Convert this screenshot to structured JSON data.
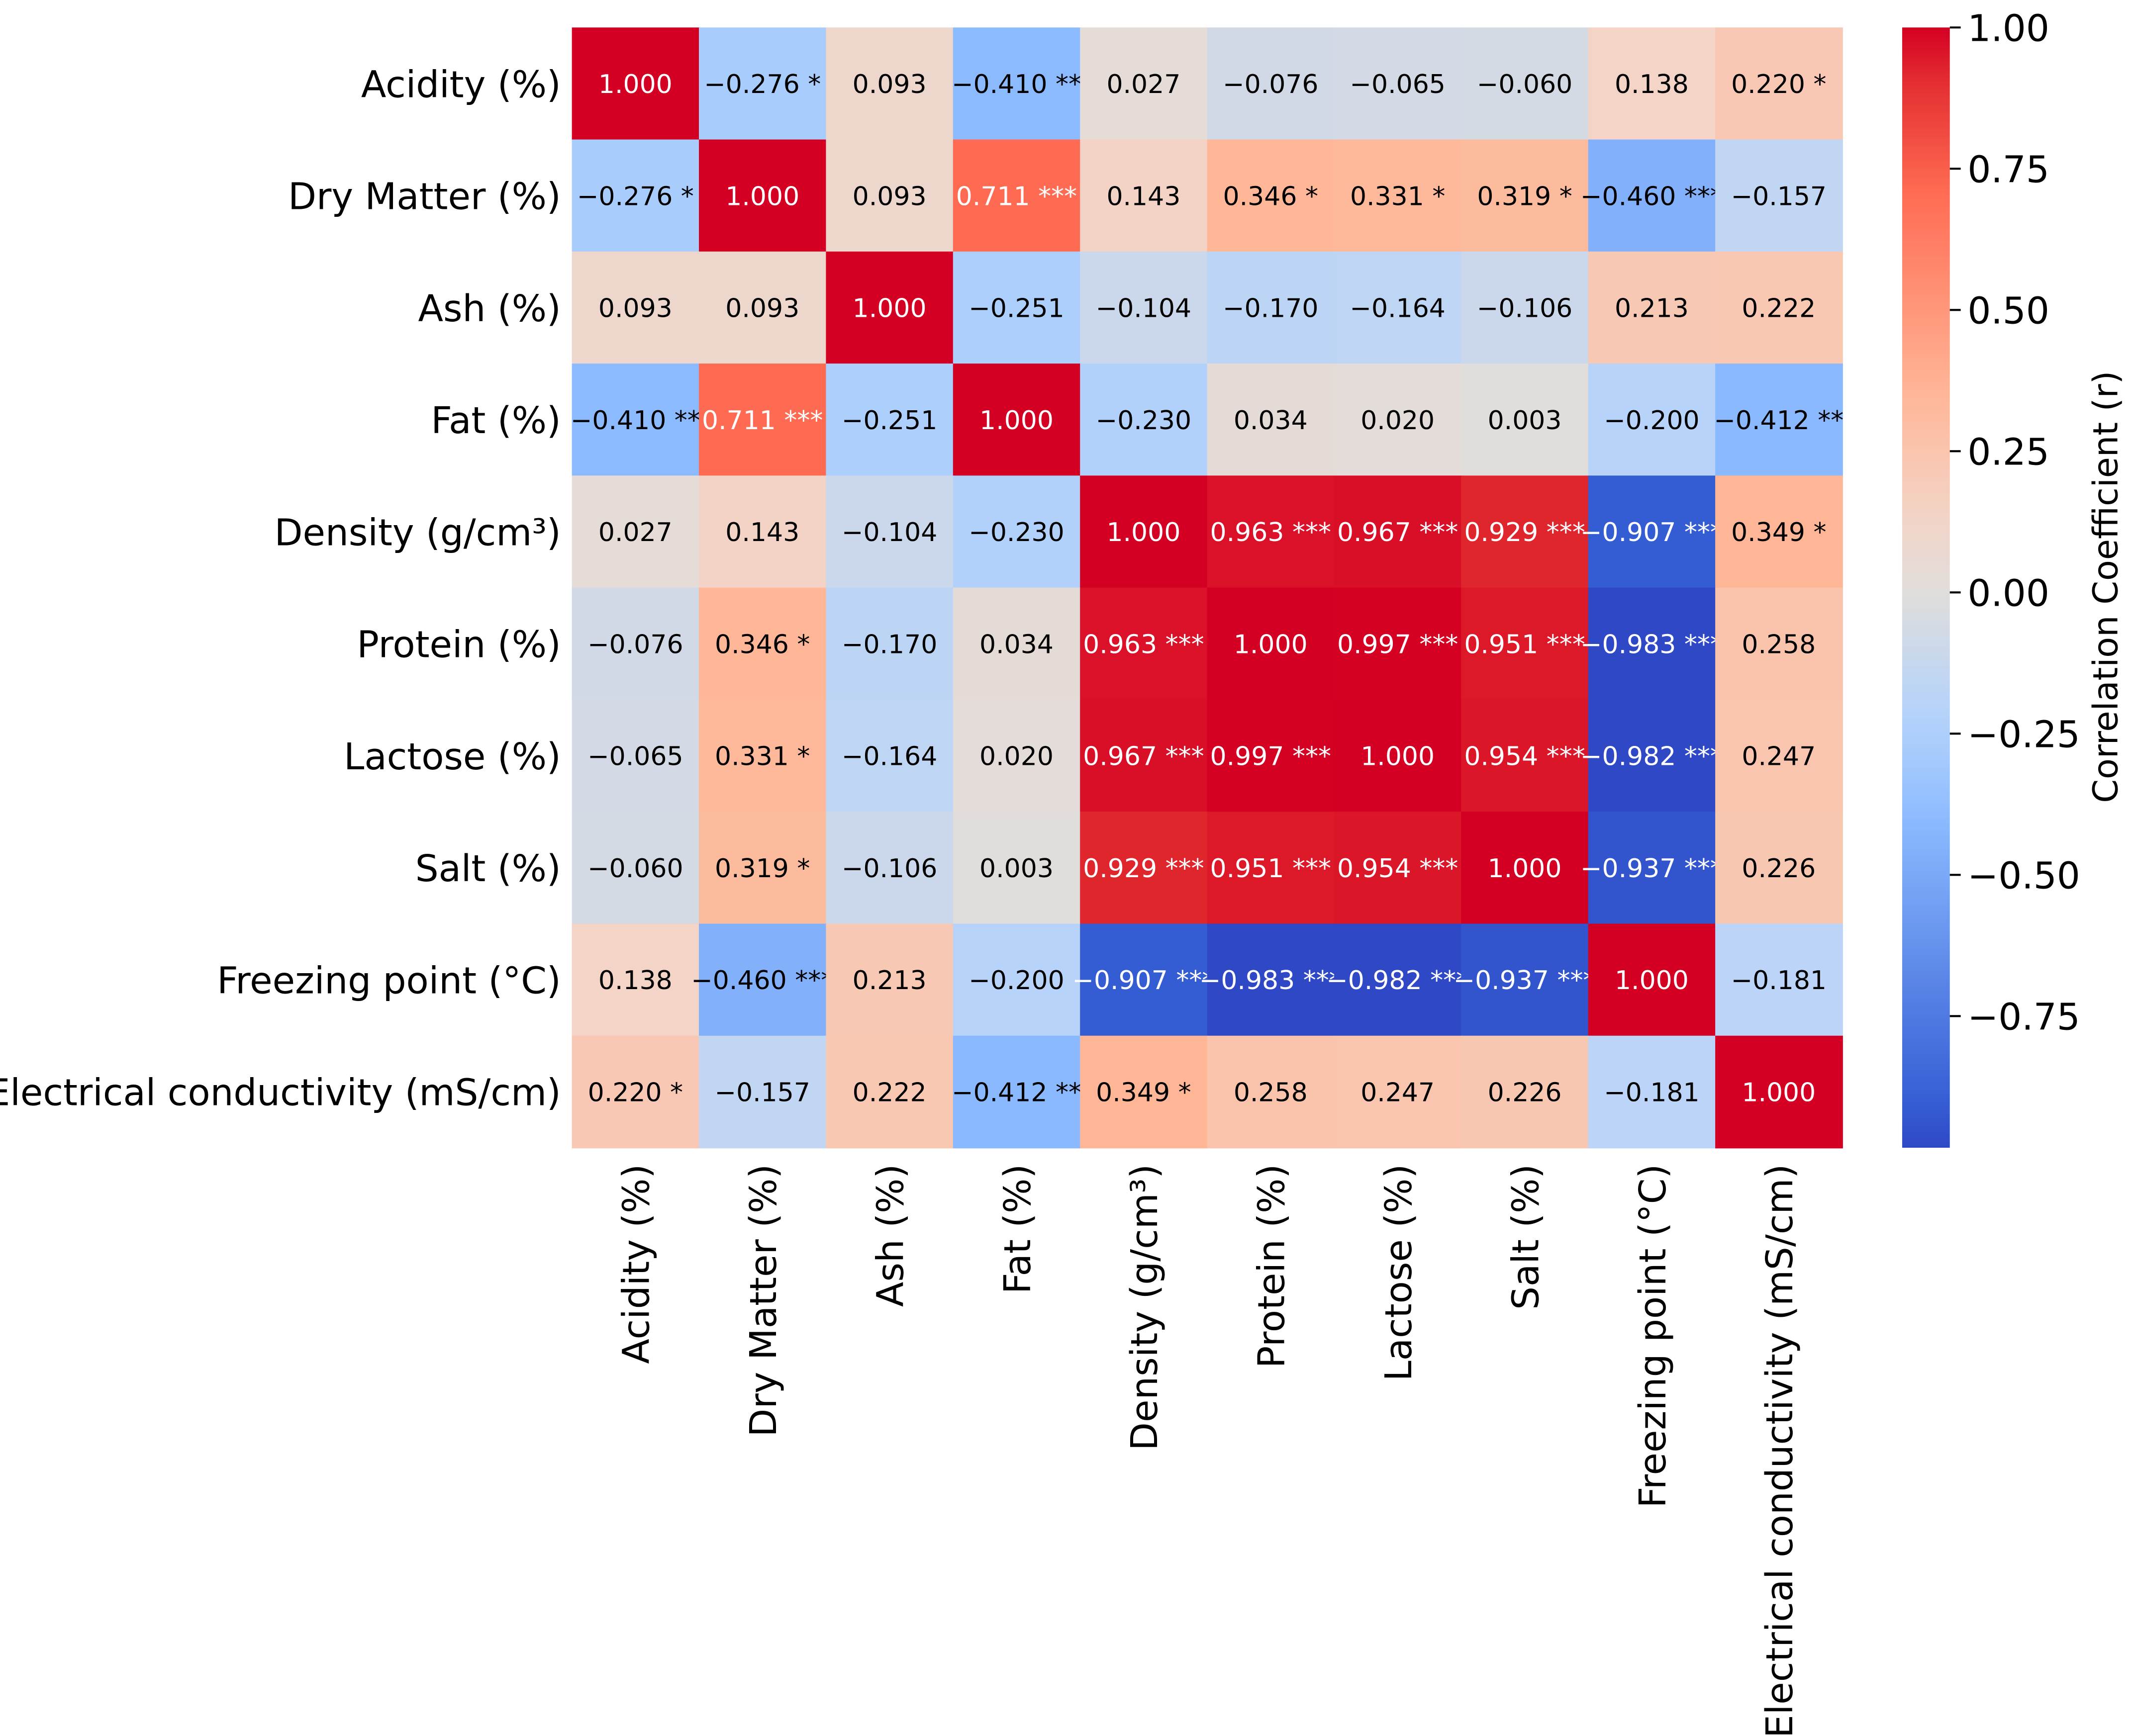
{
  "chart_data": {
    "type": "heatmap",
    "title": "",
    "variables": [
      "Acidity (%)",
      "Dry Matter (%)",
      "Ash (%)",
      "Fat (%)",
      "Density (g/cm³)",
      "Protein (%)",
      "Lactose (%)",
      "Salt (%)",
      "Freezing point (°C)",
      "Electrical conductivity (mS/cm)"
    ],
    "values": [
      [
        1.0,
        -0.276,
        0.093,
        -0.41,
        0.027,
        -0.076,
        -0.065,
        -0.06,
        0.138,
        0.22
      ],
      [
        -0.276,
        1.0,
        0.093,
        0.711,
        0.143,
        0.346,
        0.331,
        0.319,
        -0.46,
        -0.157
      ],
      [
        0.093,
        0.093,
        1.0,
        -0.251,
        -0.104,
        -0.17,
        -0.164,
        -0.106,
        0.213,
        0.222
      ],
      [
        -0.41,
        0.711,
        -0.251,
        1.0,
        -0.23,
        0.034,
        0.02,
        0.003,
        -0.2,
        -0.412
      ],
      [
        0.027,
        0.143,
        -0.104,
        -0.23,
        1.0,
        0.963,
        0.967,
        0.929,
        -0.907,
        0.349
      ],
      [
        -0.076,
        0.346,
        -0.17,
        0.034,
        0.963,
        1.0,
        0.997,
        0.951,
        -0.983,
        0.258
      ],
      [
        -0.065,
        0.331,
        -0.164,
        0.02,
        0.967,
        0.997,
        1.0,
        0.954,
        -0.982,
        0.247
      ],
      [
        -0.06,
        0.319,
        -0.106,
        0.003,
        0.929,
        0.951,
        0.954,
        1.0,
        -0.937,
        0.226
      ],
      [
        0.138,
        -0.46,
        0.213,
        -0.2,
        -0.907,
        -0.983,
        -0.982,
        -0.937,
        1.0,
        -0.181
      ],
      [
        0.22,
        -0.157,
        0.222,
        -0.412,
        0.349,
        0.258,
        0.247,
        0.226,
        -0.181,
        1.0
      ]
    ],
    "significance": [
      [
        "",
        "*",
        "",
        "**",
        "",
        "",
        "",
        "",
        "",
        "*"
      ],
      [
        "*",
        "",
        "",
        "***",
        "",
        "*",
        "*",
        "*",
        "***",
        ""
      ],
      [
        "",
        "",
        "",
        "",
        "",
        "",
        "",
        "",
        "",
        ""
      ],
      [
        "**",
        "***",
        "",
        "",
        "",
        "",
        "",
        "",
        "",
        "**"
      ],
      [
        "",
        "",
        "",
        "",
        "",
        "***",
        "***",
        "***",
        "***",
        "*"
      ],
      [
        "",
        "*",
        "",
        "",
        "***",
        "",
        "***",
        "***",
        "***",
        ""
      ],
      [
        "",
        "*",
        "",
        "",
        "***",
        "***",
        "",
        "***",
        "***",
        ""
      ],
      [
        "",
        "*",
        "",
        "",
        "***",
        "***",
        "***",
        "",
        "***",
        ""
      ],
      [
        "",
        "***",
        "",
        "",
        "***",
        "***",
        "***",
        "***",
        "",
        ""
      ],
      [
        "*",
        "",
        "",
        "**",
        "*",
        "",
        "",
        "",
        "",
        ""
      ]
    ],
    "colormap": "coolwarm",
    "color_range": [
      -0.983,
      1.0
    ],
    "colorbar": {
      "label": "Correlation Coefficient (r)",
      "ticks": [
        1.0,
        0.75,
        0.5,
        0.25,
        0.0,
        -0.25,
        -0.5,
        -0.75
      ],
      "tick_labels": [
        "1.00",
        "0.75",
        "0.50",
        "0.25",
        "0.00",
        "−0.25",
        "−0.50",
        "−0.75"
      ]
    },
    "colors": {
      "high": "#d40023",
      "mid": "#e1ddda",
      "low": "#2f48c6"
    }
  }
}
